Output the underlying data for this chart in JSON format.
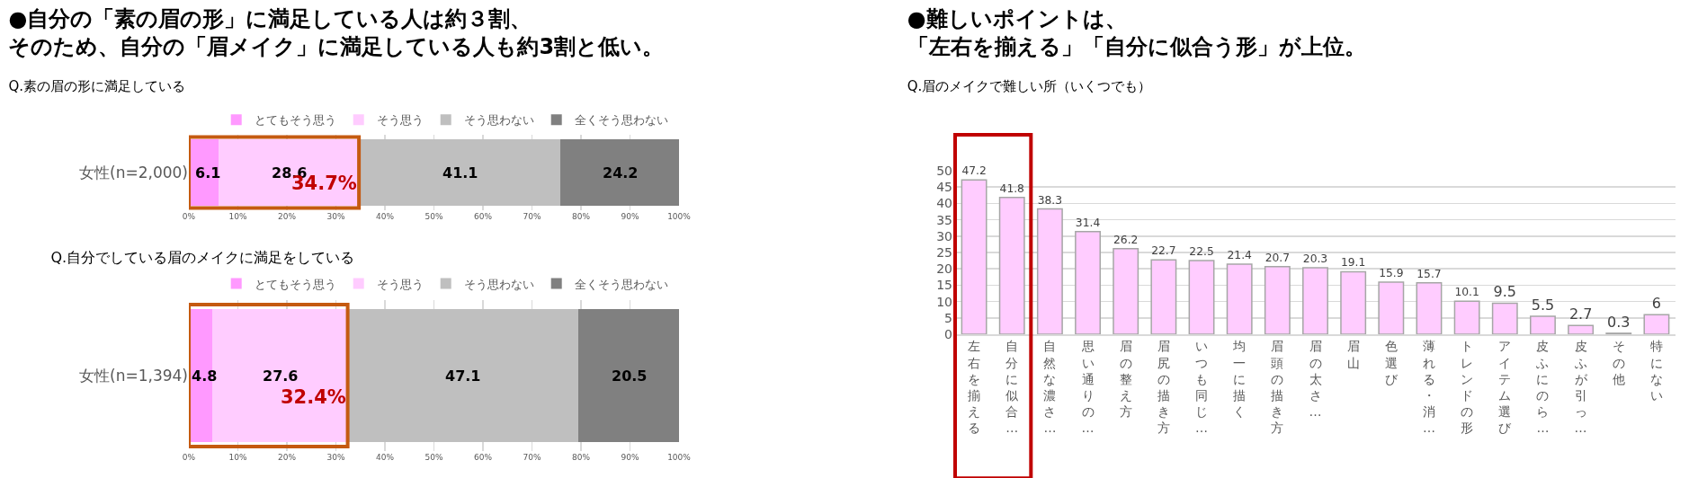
{
  "chart_data": [
    {
      "type": "bar",
      "orientation": "horizontal",
      "stacked": true,
      "title": "●自分の「素の眉の形」に満足している人は約３割、そのため、自分の「眉メイク」に満足している人も約3割と低い。",
      "subtitle": "Q.素の眉の形に満足している",
      "categories": [
        "女性(n=2,000)"
      ],
      "series": [
        {
          "name": "とてもそう思う",
          "color": "#ff99ff",
          "values": [
            6.1
          ]
        },
        {
          "name": "そう思う",
          "color": "#ffccff",
          "values": [
            28.6
          ]
        },
        {
          "name": "そう思わない",
          "color": "#bfbfbf",
          "values": [
            41.1
          ]
        },
        {
          "name": "全くそう思わない",
          "color": "#808080",
          "values": [
            24.2
          ]
        }
      ],
      "annotations": [
        "34.7%"
      ],
      "data_labels": true,
      "legend": "top",
      "grid": "x",
      "xlim": [
        0,
        100
      ],
      "xticks": [
        {
          "value": 0,
          "label": "0%"
        },
        {
          "value": 10,
          "label": "10%"
        },
        {
          "value": 20,
          "label": "20%"
        },
        {
          "value": 30,
          "label": "30%"
        },
        {
          "value": 40,
          "label": "40%"
        },
        {
          "value": 50,
          "label": "50%"
        },
        {
          "value": 60,
          "label": "60%"
        },
        {
          "value": 70,
          "label": "70%"
        },
        {
          "value": 80,
          "label": "80%"
        },
        {
          "value": 90,
          "label": "90%"
        },
        {
          "value": 100,
          "label": "100%"
        }
      ]
    },
    {
      "type": "bar",
      "orientation": "horizontal",
      "stacked": true,
      "title": "Q.自分でしている眉のメイクに満足をしている",
      "categories": [
        "女性(n=1,394)"
      ],
      "series": [
        {
          "name": "とてもそう思う",
          "color": "#ff99ff",
          "values": [
            4.8
          ]
        },
        {
          "name": "そう思う",
          "color": "#ffccff",
          "values": [
            27.6
          ]
        },
        {
          "name": "そう思わない",
          "color": "#bfbfbf",
          "values": [
            47.1
          ]
        },
        {
          "name": "全くそう思わない",
          "color": "#808080",
          "values": [
            20.5
          ]
        }
      ],
      "annotations": [
        "32.4%"
      ],
      "data_labels": true,
      "legend": "top",
      "grid": "x",
      "xlim": [
        0,
        100
      ],
      "xticks": [
        {
          "value": 0,
          "label": "0%"
        },
        {
          "value": 10,
          "label": "10%"
        },
        {
          "value": 20,
          "label": "20%"
        },
        {
          "value": 30,
          "label": "30%"
        },
        {
          "value": 40,
          "label": "40%"
        },
        {
          "value": 50,
          "label": "50%"
        },
        {
          "value": 60,
          "label": "60%"
        },
        {
          "value": 70,
          "label": "70%"
        },
        {
          "value": 80,
          "label": "80%"
        },
        {
          "value": 90,
          "label": "90%"
        },
        {
          "value": 100,
          "label": "100%"
        }
      ]
    },
    {
      "type": "bar",
      "title": "●難しいポイントは、「左右を揃える」「自分に似合う形」が上位。",
      "subtitle": "Q.眉のメイクで難しい所（いくつでも）",
      "categories": [
        "左右を揃える",
        "自分に似合…",
        "自然な濃さ…",
        "思い通りの…",
        "眉の整え方",
        "眉尻の描き方",
        "いつも同じ…",
        "均一に描く",
        "眉頭の描き方",
        "眉の太さ…",
        "眉山",
        "色選び",
        "薄れる・消…",
        "トレンドの形",
        "アイテム選び",
        "皮ふにのら…",
        "皮ふが引っ…",
        "その他",
        "特にない"
      ],
      "values": [
        47.2,
        41.8,
        38.3,
        31.4,
        26.2,
        22.7,
        22.5,
        21.4,
        20.7,
        20.3,
        19.1,
        15.9,
        15.7,
        10.1,
        9.5,
        5.5,
        2.7,
        0.3,
        6
      ],
      "color": "#ffccff",
      "data_labels": true,
      "legend": false,
      "grid": "y",
      "ylim": [
        0,
        50
      ],
      "yticks": [
        0,
        5,
        10,
        15,
        20,
        25,
        30,
        35,
        40,
        45,
        50
      ]
    }
  ]
}
